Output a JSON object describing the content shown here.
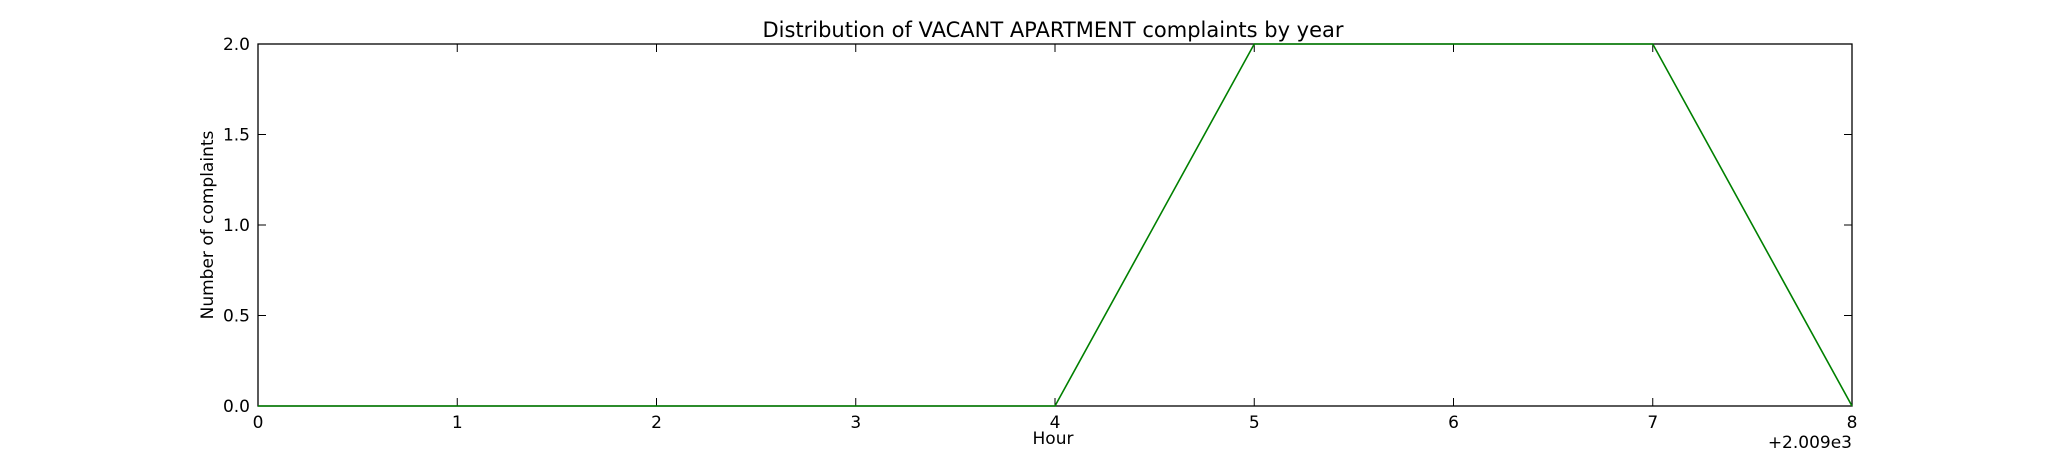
{
  "chart_data": {
    "type": "line",
    "title": "Distribution of  VACANT APARTMENT complaints by year",
    "xlabel": "Hour",
    "ylabel": "Number of complaints",
    "x_offset_label": "+2.009e3",
    "x_tick_labels": [
      "0",
      "1",
      "2",
      "3",
      "4",
      "5",
      "6",
      "7",
      "8"
    ],
    "y_tick_labels": [
      "0.0",
      "0.5",
      "1.0",
      "1.5",
      "2.0"
    ],
    "xlim": [
      0,
      8
    ],
    "ylim": [
      0,
      2
    ],
    "x_ticks": [
      0,
      1,
      2,
      3,
      4,
      5,
      6,
      7,
      8
    ],
    "y_ticks": [
      0,
      0.5,
      1.0,
      1.5,
      2.0
    ],
    "grid": false,
    "series": [
      {
        "color": "#008000",
        "x": [
          0,
          1,
          2,
          3,
          4,
          5,
          6,
          7,
          8
        ],
        "y": [
          0,
          0,
          0,
          0,
          0,
          2,
          2,
          2,
          0
        ]
      }
    ]
  }
}
